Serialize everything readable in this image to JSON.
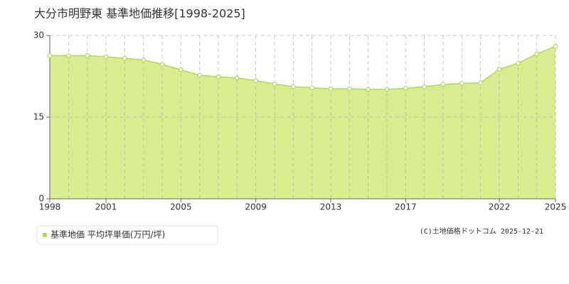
{
  "chart_data": {
    "type": "area",
    "title": "大分市明野東 基準地価推移[1998-2025]",
    "x": [
      1998,
      1999,
      2000,
      2001,
      2002,
      2003,
      2004,
      2005,
      2006,
      2007,
      2008,
      2009,
      2010,
      2011,
      2012,
      2013,
      2014,
      2015,
      2016,
      2017,
      2018,
      2019,
      2020,
      2021,
      2022,
      2023,
      2024,
      2025
    ],
    "series": [
      {
        "name": "基準地価 平均坪単価(万円/坪)",
        "color": "#b5d84a",
        "values": [
          26.3,
          26.3,
          26.3,
          26.1,
          25.8,
          25.5,
          24.7,
          23.7,
          22.7,
          22.4,
          22.2,
          21.7,
          21.1,
          20.6,
          20.4,
          20.2,
          20.2,
          20.1,
          20.1,
          20.3,
          20.6,
          21.0,
          21.2,
          21.3,
          23.8,
          24.9,
          26.6,
          28.0
        ]
      }
    ],
    "xlim": [
      1998,
      2025
    ],
    "xticks": [
      1998,
      2001,
      2005,
      2009,
      2013,
      2017,
      2022,
      2025
    ],
    "ylim": [
      0,
      30
    ],
    "yticks": [
      0,
      15,
      30
    ],
    "grid": true,
    "copyright": "(C)土地価格ドットコム 2025-12-21"
  }
}
